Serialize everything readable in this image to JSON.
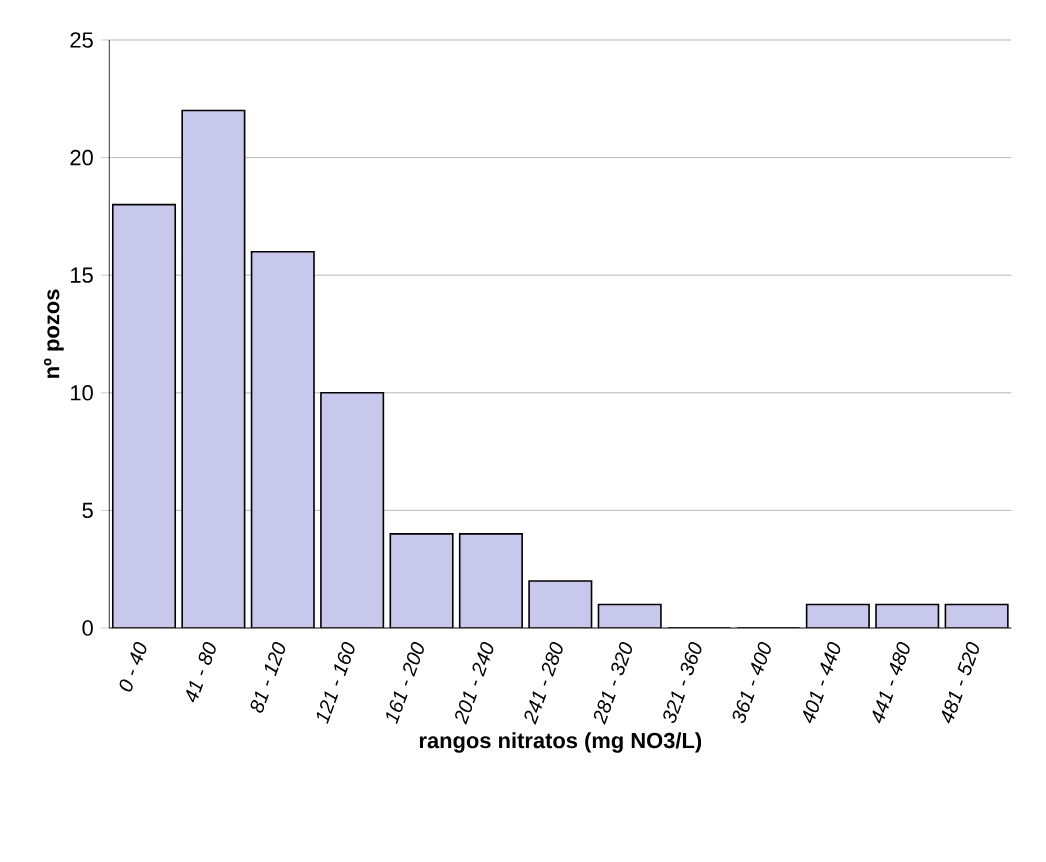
{
  "chart_data": {
    "type": "bar",
    "xlabel": "rangos nitratos (mg NO3/L)",
    "ylabel": "nº pozos",
    "categories": [
      "0 - 40",
      "41 - 80",
      "81 - 120",
      "121 - 160",
      "161 - 200",
      "201 - 240",
      "241 - 280",
      "281 - 320",
      "321 - 360",
      "361 - 400",
      "401 - 440",
      "441 - 480",
      "481 - 520"
    ],
    "values": [
      18,
      22,
      16,
      10,
      4,
      4,
      2,
      1,
      0,
      0,
      1,
      1,
      1
    ],
    "color": "#c8c8ec",
    "ylim": [
      0,
      25
    ],
    "yticks": [
      0,
      5,
      10,
      15,
      20,
      25
    ],
    "grid": "y"
  }
}
